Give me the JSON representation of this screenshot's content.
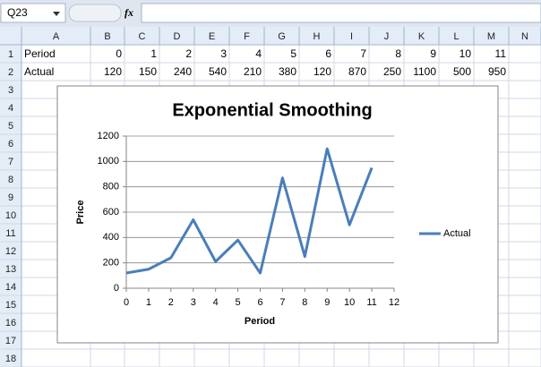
{
  "spreadsheet": {
    "name_box": "Q23",
    "fx_label": "fx",
    "columns": [
      "A",
      "B",
      "C",
      "D",
      "E",
      "F",
      "G",
      "H",
      "I",
      "J",
      "K",
      "L",
      "M",
      "N"
    ],
    "row_numbers": [
      1,
      2,
      3,
      4,
      5,
      6,
      7,
      8,
      9,
      10,
      11,
      12,
      13,
      14,
      15,
      16,
      17,
      18
    ],
    "rows": [
      [
        "Period",
        0,
        1,
        2,
        3,
        4,
        5,
        6,
        7,
        8,
        9,
        10,
        11
      ],
      [
        "Actual",
        120,
        150,
        240,
        540,
        210,
        380,
        120,
        870,
        250,
        1100,
        500,
        950
      ]
    ]
  },
  "chart_data": {
    "type": "line",
    "title": "Exponential Smoothing",
    "x": [
      0,
      1,
      2,
      3,
      4,
      5,
      6,
      7,
      8,
      9,
      10,
      11
    ],
    "series": [
      {
        "name": "Actual",
        "color": "#4a7ebb",
        "values": [
          120,
          150,
          240,
          540,
          210,
          380,
          120,
          870,
          250,
          1100,
          500,
          950
        ]
      }
    ],
    "xlim": [
      0,
      12
    ],
    "xticks": [
      0,
      1,
      2,
      3,
      4,
      5,
      6,
      7,
      8,
      9,
      10,
      11,
      12
    ],
    "ylim": [
      0,
      1200
    ],
    "yticks": [
      0,
      200,
      400,
      600,
      800,
      1000,
      1200
    ],
    "x_label": "Period",
    "y_label": "Price",
    "grid": true,
    "legend": "right"
  }
}
